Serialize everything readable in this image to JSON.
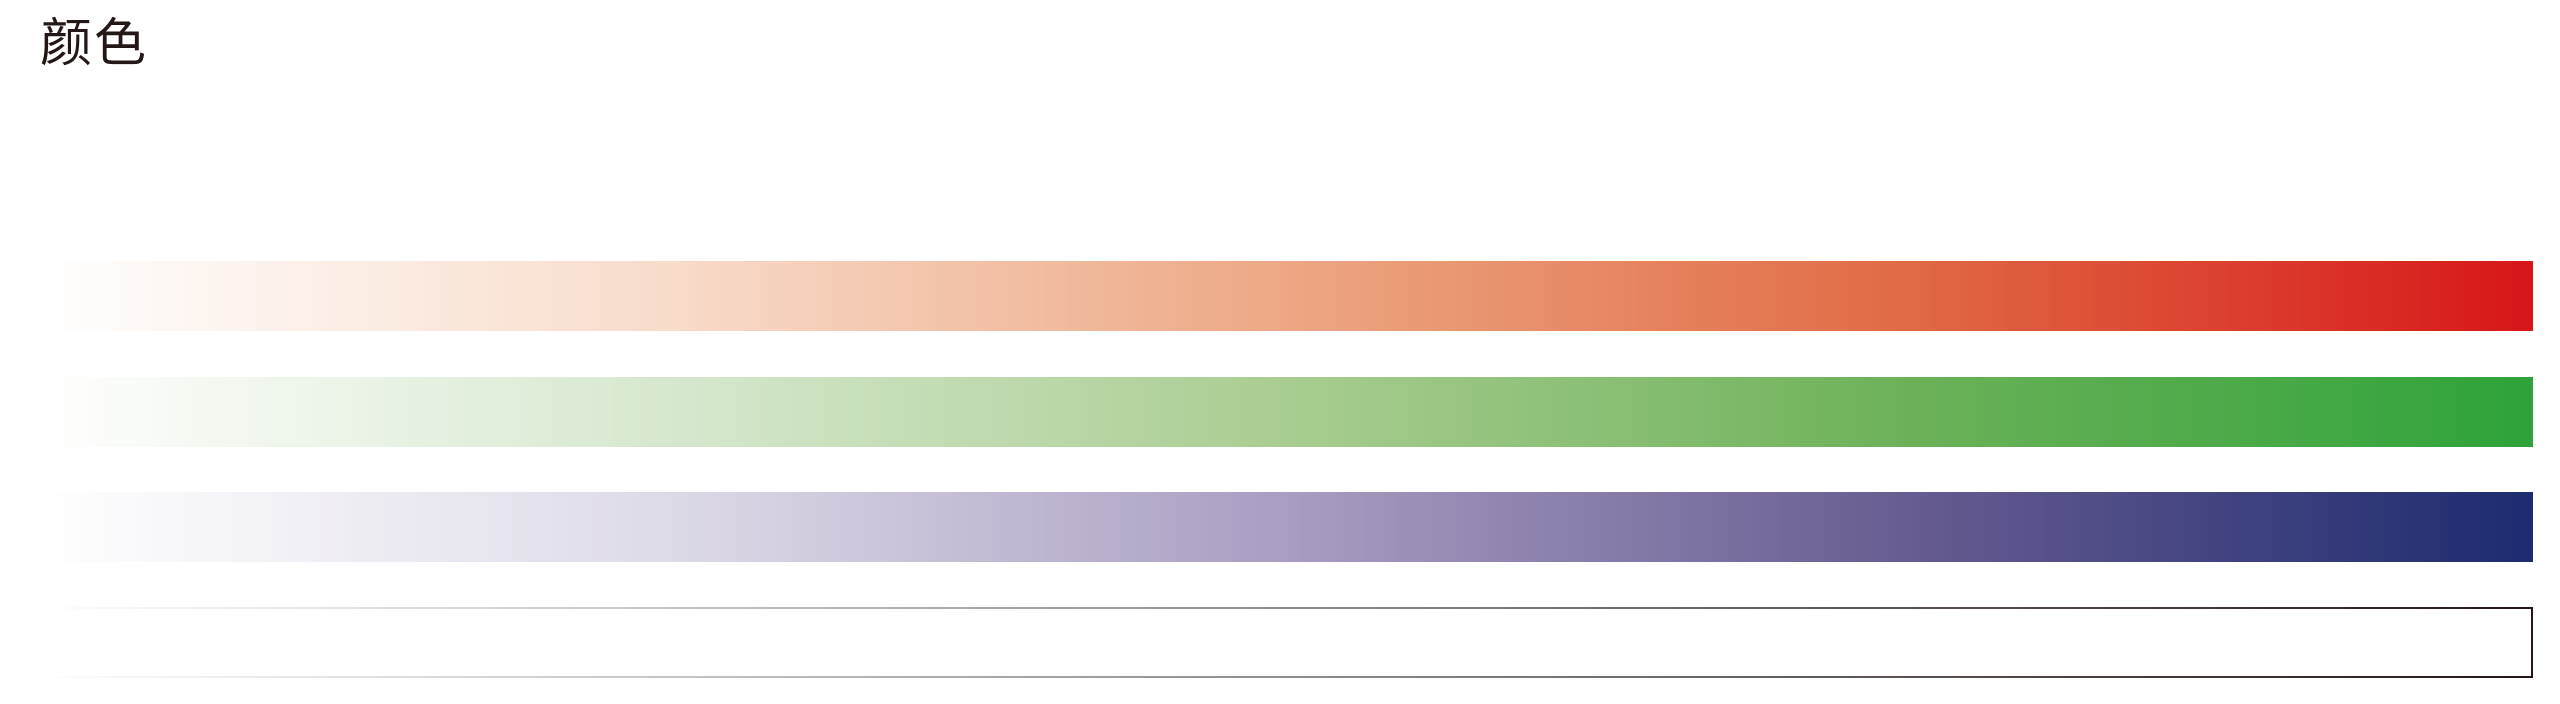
{
  "title": "颜色",
  "swatches": [
    {
      "name": "red",
      "colors": [
        "#ffffff",
        "#f8dccb",
        "#eda784",
        "#e06a44",
        "#d7161a"
      ]
    },
    {
      "name": "green",
      "colors": [
        "#ffffff",
        "#d7e8cf",
        "#a9cd91",
        "#6cb159",
        "#2ea33a"
      ]
    },
    {
      "name": "blue",
      "colors": [
        "#ffffff",
        "#dedbe8",
        "#a99dc2",
        "#675c91",
        "#1d2b70"
      ]
    },
    {
      "name": "black-outline",
      "colors": [
        "#ffffff",
        "#231815"
      ]
    }
  ]
}
